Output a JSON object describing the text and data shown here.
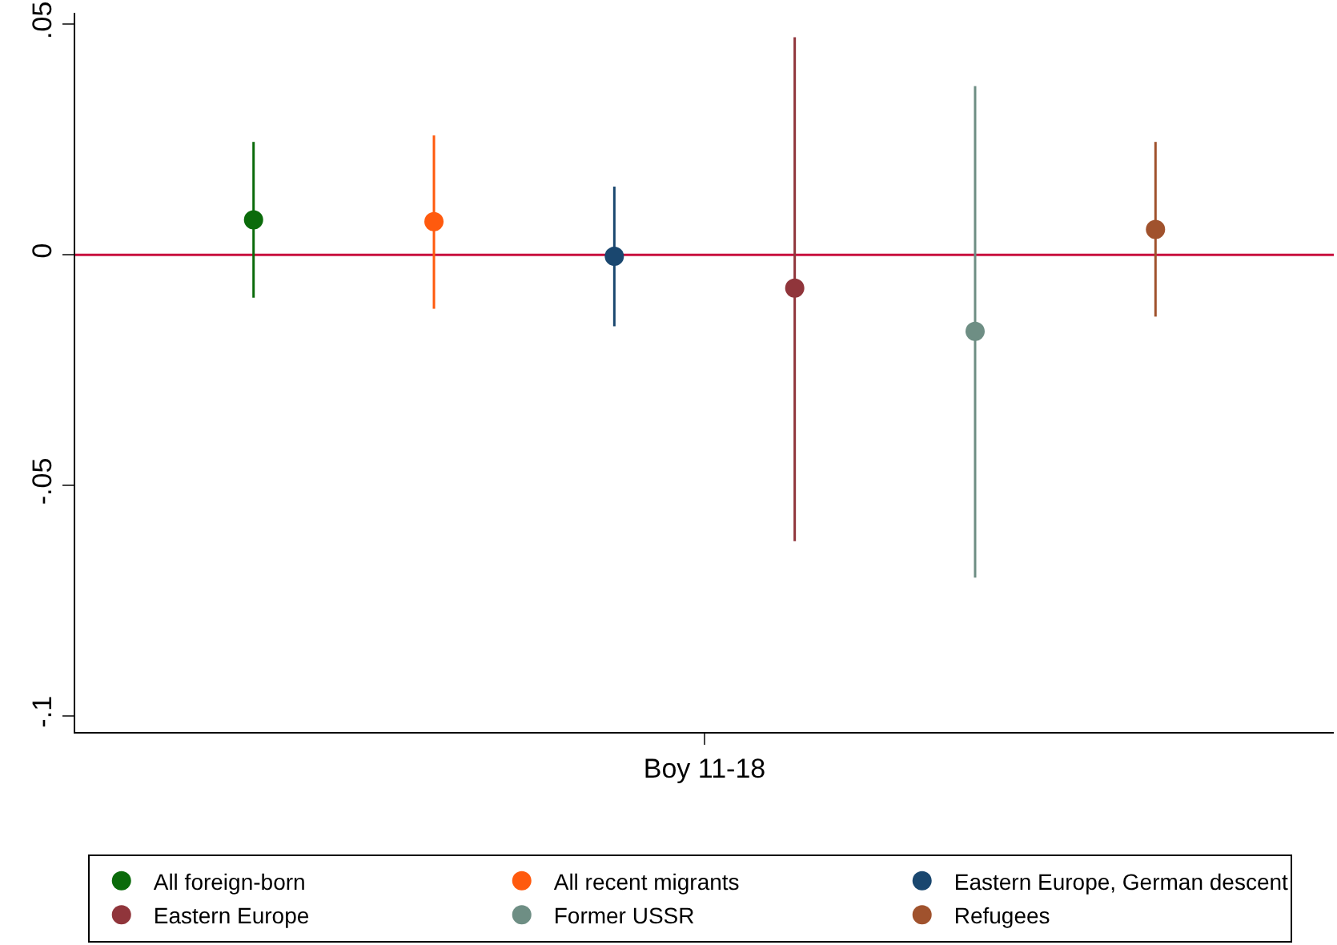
{
  "chart_data": {
    "type": "scatter",
    "marker": "circle",
    "categories": [
      "Boy 11-18"
    ],
    "ylim": [
      -0.1035,
      0.0525
    ],
    "yticks": [
      {
        "value": 0.05,
        "label": ".05"
      },
      {
        "value": 0,
        "label": "0"
      },
      {
        "value": -0.05,
        "label": "-.05"
      },
      {
        "value": -0.1,
        "label": "-.1"
      }
    ],
    "grid": false,
    "legend": "bottom",
    "ref_lines": [
      {
        "axis": "y",
        "value": 0,
        "color": "#c8103e"
      }
    ],
    "series": [
      {
        "name": "All foreign-born",
        "color": "#0b6b0b",
        "values": [
          0.0076
        ],
        "errors": [
          [
            -0.0093,
            0.0245
          ]
        ]
      },
      {
        "name": "All recent migrants",
        "color": "#ff5a0e",
        "values": [
          0.0072
        ],
        "errors": [
          [
            -0.0117,
            0.0259
          ]
        ]
      },
      {
        "name": "Eastern Europe, German descent",
        "color": "#1a476f",
        "values": [
          -0.0003
        ],
        "errors": [
          [
            -0.0155,
            0.0148
          ]
        ]
      },
      {
        "name": "Eastern Europe",
        "color": "#90353b",
        "values": [
          -0.0072
        ],
        "errors": [
          [
            -0.0621,
            0.0472
          ]
        ]
      },
      {
        "name": "Former USSR",
        "color": "#6e8e84",
        "values": [
          -0.0166
        ],
        "errors": [
          [
            -0.07,
            0.0366
          ]
        ]
      },
      {
        "name": "Refugees",
        "color": "#a0522d",
        "values": [
          0.0055
        ],
        "errors": [
          [
            -0.0134,
            0.0245
          ]
        ]
      }
    ]
  }
}
